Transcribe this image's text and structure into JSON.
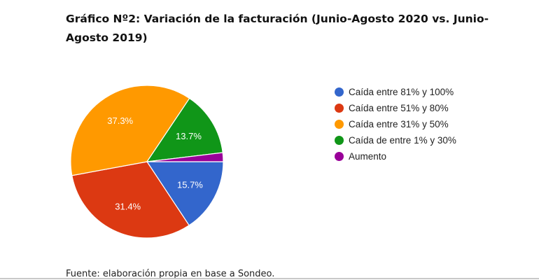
{
  "chart_data": {
    "type": "pie",
    "title": "Gráfico Nº2: Variación de la facturación (Junio-Agosto 2020 vs. Junio-Agosto 2019)",
    "legend_position": "right",
    "slices": [
      {
        "name": "Caída entre 81% y 100%",
        "value": 15.7,
        "label": "15.7%",
        "color": "#3366cc"
      },
      {
        "name": "Caída entre 51% y 80%",
        "value": 31.4,
        "label": "31.4%",
        "color": "#dc3912"
      },
      {
        "name": "Caída entre 31% y 50%",
        "value": 37.3,
        "label": "37.3%",
        "color": "#ff9900"
      },
      {
        "name": "Caída de entre 1% y 30%",
        "value": 13.7,
        "label": "13.7%",
        "color": "#109618"
      },
      {
        "name": "Aumento",
        "value": 1.9,
        "label": "",
        "color": "#990099"
      }
    ]
  },
  "footer": {
    "source": "Fuente: elaboración propia en base a Sondeo."
  }
}
